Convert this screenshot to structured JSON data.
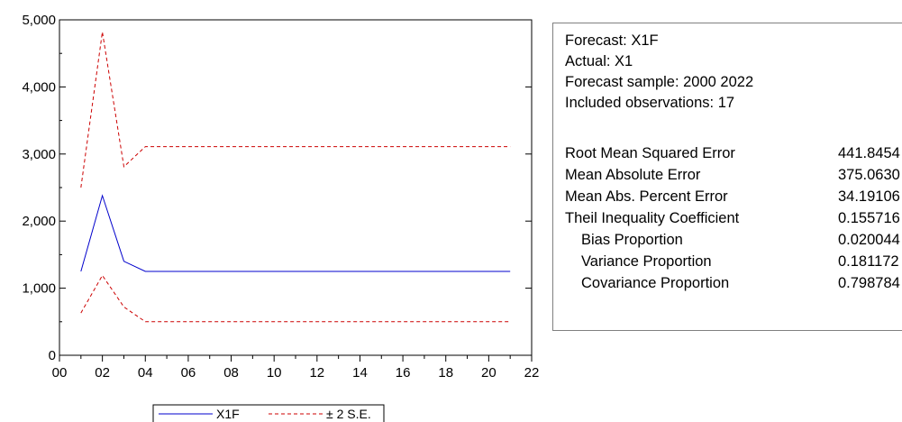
{
  "chart_data": {
    "type": "line",
    "title": "",
    "xlabel": "",
    "ylabel": "",
    "xlim": [
      0,
      22
    ],
    "ylim": [
      0,
      5000
    ],
    "x_ticks": [
      "00",
      "02",
      "04",
      "06",
      "08",
      "10",
      "12",
      "14",
      "16",
      "18",
      "20",
      "22"
    ],
    "y_ticks": [
      "0",
      "1,000",
      "2,000",
      "3,000",
      "4,000",
      "5,000"
    ],
    "grid": false,
    "legend_position": "bottom",
    "x": [
      1,
      2,
      3,
      4,
      5,
      6,
      7,
      8,
      9,
      10,
      11,
      12,
      13,
      14,
      15,
      16,
      17,
      18,
      19,
      20,
      21
    ],
    "series": [
      {
        "name": "X1F",
        "style": "solid",
        "color": "#0000cc",
        "values": [
          1250,
          2380,
          1400,
          1250,
          1250,
          1250,
          1250,
          1250,
          1250,
          1250,
          1250,
          1250,
          1250,
          1250,
          1250,
          1250,
          1250,
          1250,
          1250,
          1250,
          1250
        ]
      },
      {
        "name": "± 2 S.E.",
        "style": "dashed",
        "color": "#cc0000",
        "values": [
          2500,
          4820,
          2810,
          3110,
          3110,
          3110,
          3110,
          3110,
          3110,
          3110,
          3110,
          3110,
          3110,
          3110,
          3110,
          3110,
          3110,
          3110,
          3110,
          3110,
          3110
        ]
      },
      {
        "name": "",
        "style": "dashed",
        "color": "#cc0000",
        "values": [
          630,
          1190,
          720,
          500,
          500,
          500,
          500,
          500,
          500,
          500,
          500,
          500,
          500,
          500,
          500,
          500,
          500,
          500,
          500,
          500,
          500
        ]
      }
    ]
  },
  "legend": {
    "items": [
      "X1F",
      "± 2 S.E."
    ]
  },
  "stats": {
    "forecast": "Forecast: X1F",
    "actual": "Actual: X1",
    "sample": "Forecast sample: 2000 2022",
    "observations": "Included observations: 17",
    "rows": [
      {
        "label": "Root Mean Squared Error",
        "value": "441.8454",
        "indent": false
      },
      {
        "label": "Mean Absolute Error",
        "value": "375.0630",
        "indent": false
      },
      {
        "label": "Mean Abs. Percent Error",
        "value": "34.19106",
        "indent": false
      },
      {
        "label": "Theil Inequality Coefficient",
        "value": "0.155716",
        "indent": false
      },
      {
        "label": "Bias Proportion",
        "value": "0.020044",
        "indent": true
      },
      {
        "label": "Variance Proportion",
        "value": "0.181172",
        "indent": true
      },
      {
        "label": "Covariance Proportion",
        "value": "0.798784",
        "indent": true
      }
    ]
  }
}
